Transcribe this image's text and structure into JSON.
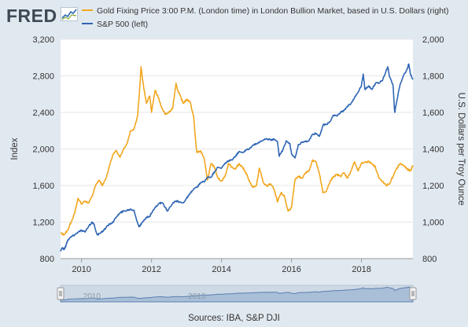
{
  "logo": {
    "text": "FRED"
  },
  "sources": "Sources: IBA, S&P DJI",
  "colors": {
    "gold": "#f1a71f",
    "sp500": "#2f66b5",
    "background": "#e1e9f0",
    "plot": "#ffffff"
  },
  "chart_data": {
    "type": "line",
    "ylabel_left": "Index",
    "ylabel_right": "U.S. Dollars per Troy Ounce",
    "left_ticks": [
      "800",
      "1,200",
      "1,600",
      "2,000",
      "2,400",
      "2,800",
      "3,200"
    ],
    "right_ticks": [
      "800",
      "1,000",
      "1,200",
      "1,400",
      "1,600",
      "1,800",
      "2,000"
    ],
    "x_ticks": [
      "2010",
      "2012",
      "2014",
      "2016",
      "2018"
    ],
    "ylim_left": [
      800,
      3200
    ],
    "ylim_right": [
      800,
      2000
    ],
    "xlim": [
      2009.4,
      2019.47
    ],
    "grid": "horizontal",
    "series": [
      {
        "name": "Gold Fixing Price 3:00 P.M. (London time) in London Bullion Market, based in U.S. Dollars (right)",
        "axis": "right",
        "x": [
          2009.4,
          2009.5,
          2009.6,
          2009.7,
          2009.8,
          2009.9,
          2010.0,
          2010.1,
          2010.2,
          2010.3,
          2010.4,
          2010.5,
          2010.6,
          2010.7,
          2010.8,
          2010.9,
          2011.0,
          2011.1,
          2011.2,
          2011.3,
          2011.4,
          2011.5,
          2011.6,
          2011.65,
          2011.7,
          2011.75,
          2011.85,
          2011.95,
          2012.0,
          2012.1,
          2012.2,
          2012.3,
          2012.4,
          2012.5,
          2012.6,
          2012.7,
          2012.75,
          2012.8,
          2012.9,
          2013.0,
          2013.1,
          2013.2,
          2013.28,
          2013.3,
          2013.4,
          2013.5,
          2013.6,
          2013.7,
          2013.8,
          2013.9,
          2014.0,
          2014.1,
          2014.2,
          2014.3,
          2014.4,
          2014.5,
          2014.6,
          2014.7,
          2014.8,
          2014.9,
          2015.0,
          2015.08,
          2015.2,
          2015.3,
          2015.4,
          2015.5,
          2015.6,
          2015.7,
          2015.8,
          2015.9,
          2016.0,
          2016.1,
          2016.2,
          2016.3,
          2016.4,
          2016.5,
          2016.6,
          2016.7,
          2016.8,
          2016.9,
          2017.0,
          2017.1,
          2017.2,
          2017.3,
          2017.4,
          2017.5,
          2017.6,
          2017.7,
          2017.8,
          2017.9,
          2018.0,
          2018.1,
          2018.2,
          2018.3,
          2018.4,
          2018.5,
          2018.6,
          2018.7,
          2018.8,
          2018.9,
          2019.0,
          2019.1,
          2019.2,
          2019.3,
          2019.4,
          2019.47
        ],
        "values": [
          940,
          930,
          955,
          1000,
          1045,
          1130,
          1100,
          1115,
          1105,
          1140,
          1200,
          1230,
          1200,
          1240,
          1310,
          1370,
          1390,
          1355,
          1400,
          1430,
          1500,
          1510,
          1580,
          1700,
          1850,
          1770,
          1650,
          1690,
          1600,
          1720,
          1680,
          1620,
          1590,
          1600,
          1620,
          1760,
          1720,
          1700,
          1650,
          1670,
          1660,
          1580,
          1400,
          1380,
          1390,
          1350,
          1230,
          1320,
          1300,
          1240,
          1225,
          1250,
          1320,
          1300,
          1290,
          1320,
          1300,
          1270,
          1220,
          1190,
          1200,
          1295,
          1215,
          1195,
          1210,
          1180,
          1110,
          1160,
          1140,
          1060,
          1080,
          1230,
          1250,
          1240,
          1270,
          1280,
          1340,
          1330,
          1260,
          1160,
          1170,
          1220,
          1250,
          1260,
          1250,
          1270,
          1240,
          1280,
          1330,
          1280,
          1320,
          1330,
          1330,
          1320,
          1300,
          1240,
          1220,
          1200,
          1210,
          1250,
          1290,
          1320,
          1310,
          1290,
          1280,
          1310
        ]
      },
      {
        "name": "S&P 500 (left)",
        "axis": "left",
        "x": [
          2009.4,
          2009.45,
          2009.5,
          2009.55,
          2009.6,
          2009.7,
          2009.8,
          2009.9,
          2010.0,
          2010.1,
          2010.2,
          2010.3,
          2010.35,
          2010.45,
          2010.55,
          2010.6,
          2010.7,
          2010.8,
          2010.9,
          2011.0,
          2011.1,
          2011.2,
          2011.3,
          2011.4,
          2011.5,
          2011.6,
          2011.65,
          2011.75,
          2011.85,
          2011.95,
          2012.0,
          2012.1,
          2012.2,
          2012.3,
          2012.4,
          2012.45,
          2012.6,
          2012.7,
          2012.8,
          2012.9,
          2013.0,
          2013.1,
          2013.2,
          2013.3,
          2013.4,
          2013.5,
          2013.6,
          2013.7,
          2013.8,
          2013.9,
          2014.0,
          2014.1,
          2014.2,
          2014.3,
          2014.4,
          2014.5,
          2014.6,
          2014.7,
          2014.8,
          2014.9,
          2015.0,
          2015.1,
          2015.2,
          2015.3,
          2015.4,
          2015.5,
          2015.6,
          2015.65,
          2015.75,
          2015.85,
          2015.95,
          2016.0,
          2016.1,
          2016.2,
          2016.3,
          2016.4,
          2016.5,
          2016.6,
          2016.7,
          2016.8,
          2016.9,
          2017.0,
          2017.1,
          2017.2,
          2017.3,
          2017.4,
          2017.5,
          2017.6,
          2017.7,
          2017.8,
          2017.9,
          2018.0,
          2018.05,
          2018.1,
          2018.2,
          2018.3,
          2018.4,
          2018.5,
          2018.6,
          2018.7,
          2018.75,
          2018.8,
          2018.9,
          2018.95,
          2019.0,
          2019.1,
          2019.2,
          2019.3,
          2019.35,
          2019.4,
          2019.47
        ],
        "values": [
          890,
          920,
          900,
          940,
          1000,
          1040,
          1060,
          1090,
          1110,
          1090,
          1150,
          1200,
          1180,
          1060,
          1080,
          1100,
          1140,
          1180,
          1200,
          1260,
          1300,
          1320,
          1330,
          1340,
          1330,
          1190,
          1150,
          1200,
          1250,
          1260,
          1300,
          1360,
          1400,
          1410,
          1360,
          1320,
          1400,
          1430,
          1420,
          1410,
          1460,
          1510,
          1560,
          1580,
          1630,
          1640,
          1690,
          1690,
          1750,
          1800,
          1790,
          1840,
          1870,
          1880,
          1920,
          1970,
          1960,
          1990,
          2000,
          2040,
          2060,
          2080,
          2100,
          2110,
          2100,
          2110,
          2080,
          1920,
          1990,
          2090,
          2060,
          1950,
          1900,
          2050,
          2070,
          2080,
          2090,
          2160,
          2170,
          2140,
          2260,
          2270,
          2300,
          2370,
          2360,
          2400,
          2420,
          2470,
          2500,
          2560,
          2620,
          2700,
          2820,
          2650,
          2690,
          2650,
          2720,
          2720,
          2750,
          2850,
          2900,
          2790,
          2700,
          2400,
          2510,
          2700,
          2800,
          2870,
          2930,
          2820,
          2760
        ]
      }
    ]
  }
}
